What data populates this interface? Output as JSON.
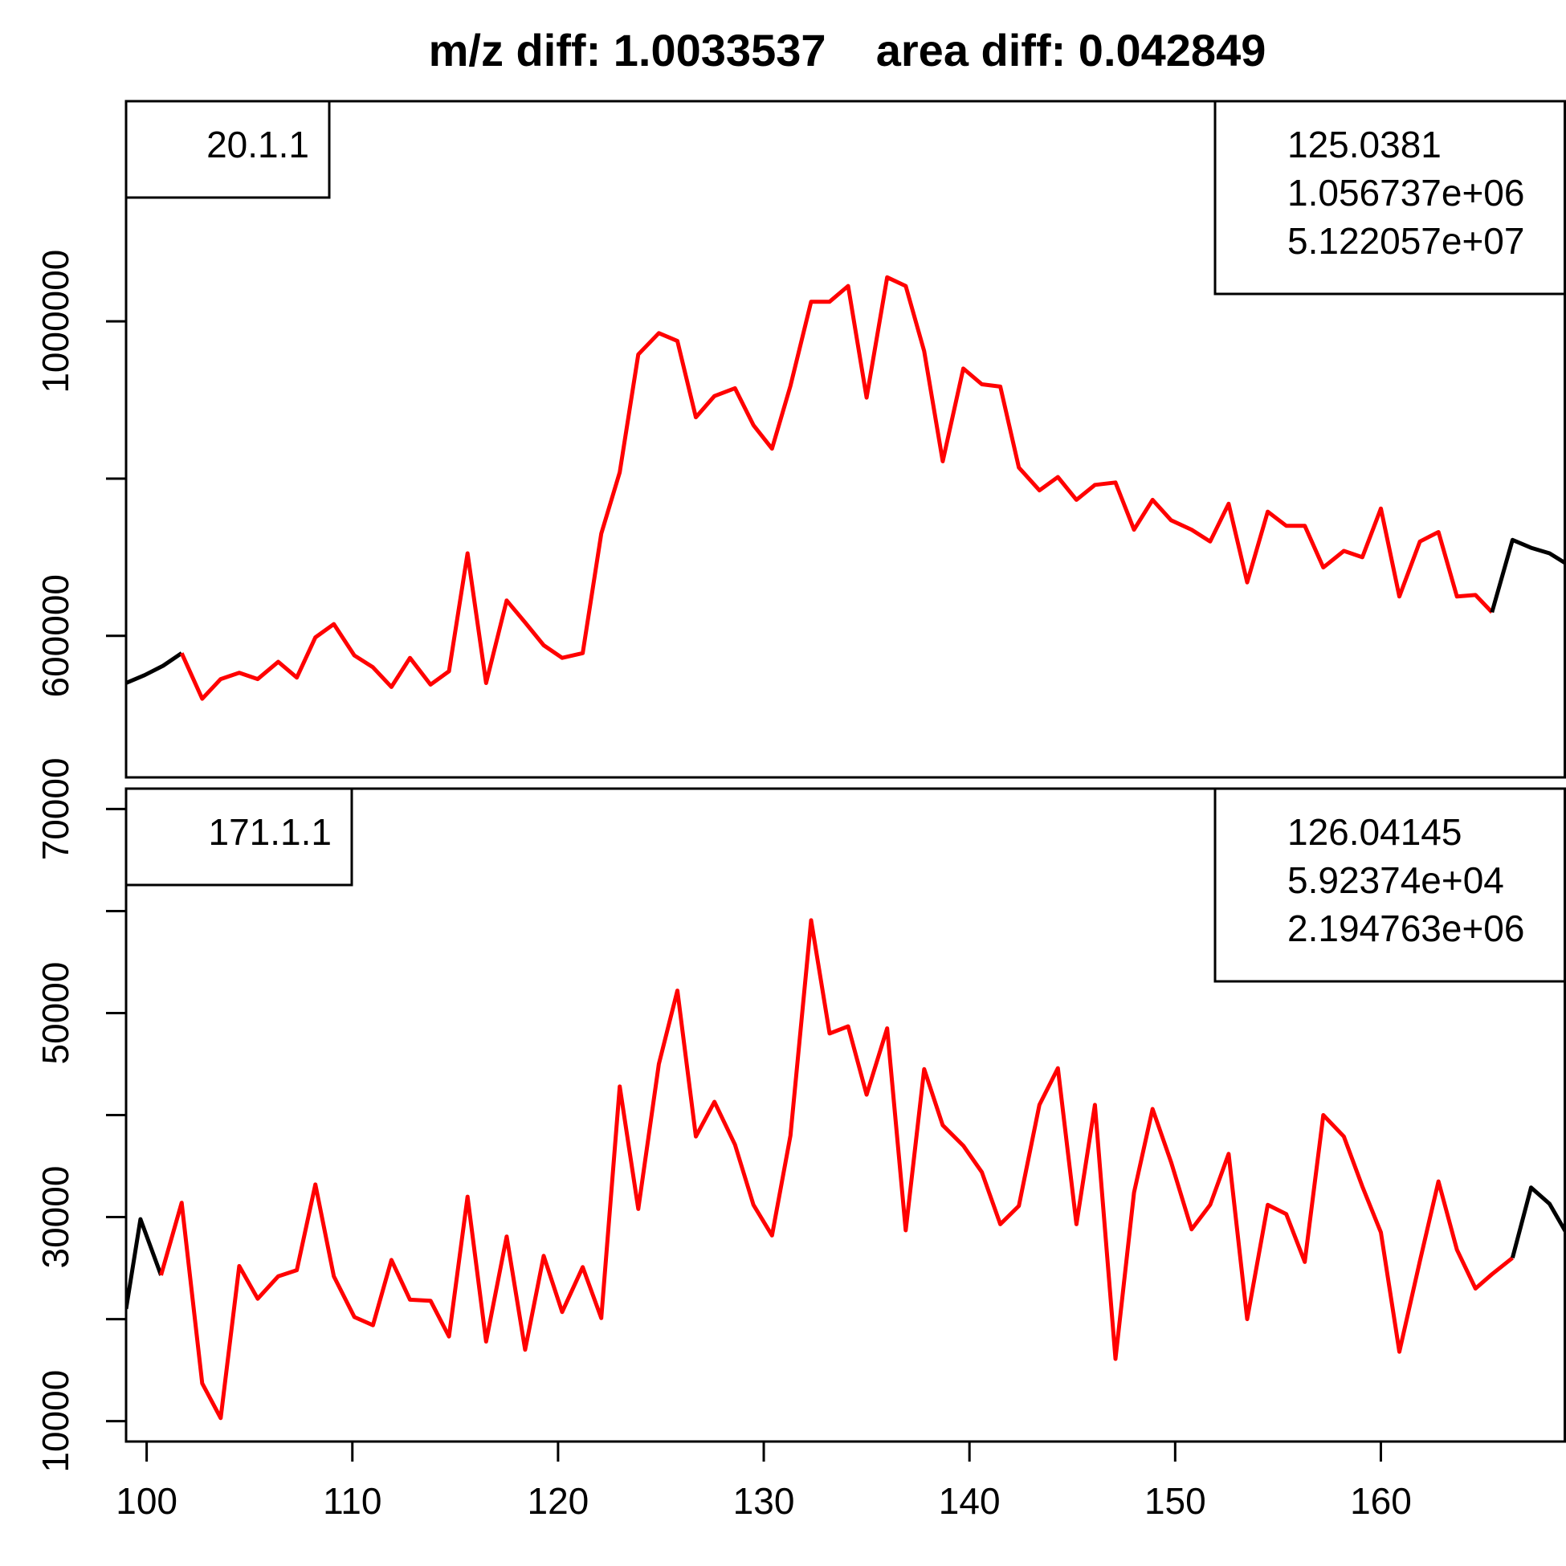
{
  "chart_data": {
    "title": "m/z diff: 1.0033537    area diff: 0.042849",
    "colors": {
      "in_range": "#ff0000",
      "out_of_range": "#000000",
      "frame": "#000000"
    },
    "x_ticks": [
      100,
      110,
      120,
      130,
      140,
      150,
      160
    ],
    "xlim": [
      99,
      169
    ],
    "panels": [
      {
        "type": "line",
        "legend_left": "20.1.1",
        "legend_right": [
          "125.0381",
          "1.056737e+06",
          "5.122057e+07"
        ],
        "ylim": [
          420000,
          1280000
        ],
        "y_ticks": [
          600000,
          800000,
          1000000
        ],
        "y_tick_labels": [
          "600000",
          "",
          "1000000"
        ],
        "highlight_from": 102.7,
        "highlight_to": 165.4,
        "x": [
          99.0,
          99.9,
          100.8,
          101.7,
          102.7,
          103.6,
          104.5,
          105.4,
          106.4,
          107.3,
          108.2,
          109.1,
          110.1,
          111.0,
          111.9,
          112.8,
          113.8,
          114.7,
          115.6,
          116.5,
          117.5,
          118.4,
          119.3,
          120.2,
          121.2,
          122.1,
          123.0,
          123.9,
          124.9,
          125.8,
          126.7,
          127.6,
          128.6,
          129.5,
          130.4,
          131.3,
          132.3,
          133.2,
          134.1,
          135.0,
          136.0,
          136.9,
          137.8,
          138.7,
          139.7,
          140.6,
          141.5,
          142.4,
          143.4,
          144.3,
          145.2,
          146.1,
          147.1,
          148.0,
          148.9,
          149.8,
          150.8,
          151.7,
          152.6,
          153.5,
          154.5,
          155.4,
          156.3,
          157.2,
          158.2,
          159.1,
          160.0,
          160.9,
          161.9,
          162.8,
          163.7,
          164.6,
          165.4,
          166.4,
          167.3,
          168.2,
          169.0
        ],
        "y": [
          540000,
          550000,
          562000,
          578000,
          520000,
          545000,
          553000,
          545000,
          567000,
          547000,
          598000,
          615000,
          575000,
          560000,
          535000,
          572000,
          538000,
          555000,
          705000,
          540000,
          645000,
          617000,
          588000,
          572000,
          578000,
          730000,
          808000,
          958000,
          985000,
          975000,
          878000,
          905000,
          915000,
          868000,
          838000,
          918000,
          1025000,
          1025000,
          1045000,
          903000,
          1056000,
          1045000,
          962000,
          822000,
          940000,
          920000,
          917000,
          814000,
          785000,
          802000,
          773000,
          792000,
          795000,
          735000,
          773000,
          747000,
          735000,
          720000,
          768000,
          668000,
          758000,
          740000,
          740000,
          687000,
          708000,
          700000,
          762000,
          650000,
          720000,
          732000,
          650000,
          652000,
          630000,
          722000,
          712000,
          705000,
          692000
        ]
      },
      {
        "type": "line",
        "legend_left": "171.1.1",
        "legend_right": [
          "126.04145",
          "5.92374e+04",
          "2.194763e+06"
        ],
        "ylim": [
          8000,
          72000
        ],
        "y_ticks": [
          10000,
          20000,
          30000,
          40000,
          50000,
          60000,
          70000
        ],
        "y_tick_labels": [
          "10000",
          "",
          "30000",
          "",
          "50000",
          "",
          "70000"
        ],
        "highlight_from": 101.7,
        "highlight_to": 166.4,
        "x": [
          99.0,
          99.7,
          100.7,
          101.7,
          102.7,
          103.6,
          104.5,
          105.4,
          106.4,
          107.3,
          108.2,
          109.1,
          110.1,
          111.0,
          111.9,
          112.8,
          113.8,
          114.7,
          115.6,
          116.5,
          117.5,
          118.4,
          119.3,
          120.2,
          121.2,
          122.1,
          123.0,
          123.9,
          124.9,
          125.8,
          126.7,
          127.6,
          128.6,
          129.5,
          130.4,
          131.3,
          132.3,
          133.2,
          134.1,
          135.0,
          136.0,
          136.9,
          137.8,
          138.7,
          139.7,
          140.6,
          141.5,
          142.4,
          143.4,
          144.3,
          145.2,
          146.1,
          147.1,
          148.0,
          148.9,
          149.8,
          150.8,
          151.7,
          152.6,
          153.5,
          154.5,
          155.4,
          156.3,
          157.2,
          158.2,
          159.1,
          160.0,
          160.9,
          161.9,
          162.8,
          163.7,
          164.6,
          165.4,
          166.4,
          167.3,
          168.2,
          169.0
        ],
        "y": [
          21000,
          29800,
          24300,
          31400,
          13700,
          10300,
          25200,
          22000,
          24200,
          24800,
          33200,
          24200,
          20200,
          19400,
          25800,
          21900,
          21800,
          18300,
          32000,
          17800,
          28100,
          17000,
          26200,
          20700,
          25100,
          20100,
          42800,
          30800,
          45000,
          52200,
          37900,
          41300,
          37100,
          31200,
          28200,
          38000,
          59100,
          48000,
          48700,
          42000,
          48500,
          28700,
          44500,
          39000,
          37000,
          34400,
          29300,
          31100,
          41000,
          44600,
          29300,
          41000,
          16100,
          32400,
          40600,
          35400,
          28800,
          31200,
          36200,
          20000,
          31200,
          30300,
          25600,
          40000,
          37900,
          33000,
          28500,
          16800,
          25700,
          33500,
          26800,
          23000,
          24400,
          26000,
          32900,
          31300,
          28500
        ]
      }
    ]
  }
}
